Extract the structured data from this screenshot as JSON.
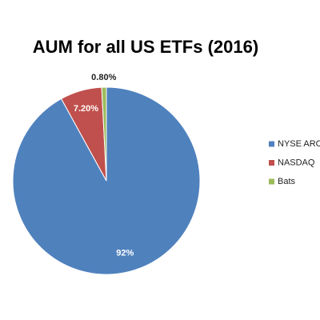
{
  "chart_data": {
    "type": "pie",
    "title": "AUM for all US ETFs (2016)",
    "categories": [
      "NYSE ARCA",
      "NASDAQ",
      "Bats"
    ],
    "values": [
      92,
      7.2,
      0.8
    ],
    "value_labels": [
      "92%",
      "7.20%",
      "0.80%"
    ],
    "colors": [
      "#4f81bd",
      "#c0504d",
      "#9bbb59"
    ],
    "legend": "right"
  }
}
